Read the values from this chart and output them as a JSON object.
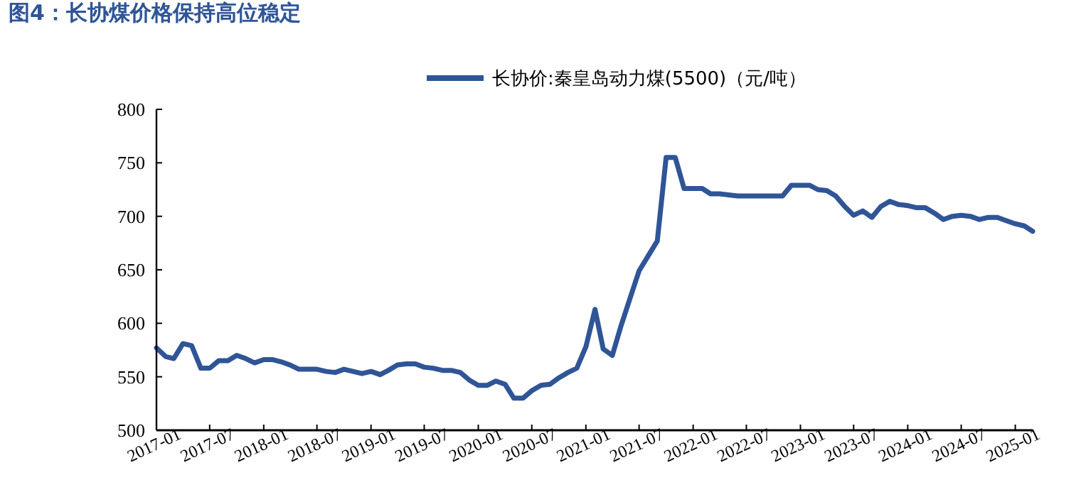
{
  "chart_data": {
    "type": "line",
    "title": "图4：长协煤价格保持高位稳定",
    "x": [
      "2017-01",
      "2017-02",
      "2017-03",
      "2017-04",
      "2017-05",
      "2017-06",
      "2017-07",
      "2017-08",
      "2017-09",
      "2017-10",
      "2017-11",
      "2017-12",
      "2018-01",
      "2018-02",
      "2018-03",
      "2018-04",
      "2018-05",
      "2018-06",
      "2018-07",
      "2018-08",
      "2018-09",
      "2018-10",
      "2018-11",
      "2018-12",
      "2019-01",
      "2019-02",
      "2019-03",
      "2019-04",
      "2019-05",
      "2019-06",
      "2019-07",
      "2019-08",
      "2019-09",
      "2019-10",
      "2019-11",
      "2019-12",
      "2020-01",
      "2020-02",
      "2020-03",
      "2020-04",
      "2020-05",
      "2020-06",
      "2020-07",
      "2020-08",
      "2020-09",
      "2020-10",
      "2020-11",
      "2020-12",
      "2021-01",
      "2021-02",
      "2021-03",
      "2021-04",
      "2021-05",
      "2021-06",
      "2021-07",
      "2021-08",
      "2021-09",
      "2021-10",
      "2021-11",
      "2021-12",
      "2022-01",
      "2022-02",
      "2022-03",
      "2022-04",
      "2022-05",
      "2022-06",
      "2022-07",
      "2022-08",
      "2022-09",
      "2022-10",
      "2022-11",
      "2022-12",
      "2023-01",
      "2023-02",
      "2023-03",
      "2023-04",
      "2023-05",
      "2023-06",
      "2023-07",
      "2023-08",
      "2023-09",
      "2023-10",
      "2023-11",
      "2023-12",
      "2024-01",
      "2024-02",
      "2024-03",
      "2024-04",
      "2024-05",
      "2024-06",
      "2024-07",
      "2024-08",
      "2024-09",
      "2024-10",
      "2024-11",
      "2024-12",
      "2025-01",
      "2025-02",
      "2025-03"
    ],
    "series": [
      {
        "name": "长协价:秦皇岛动力煤(5500)（元/吨）",
        "color": "#2f5597",
        "values": [
          577,
          569,
          567,
          581,
          579,
          558,
          558,
          565,
          565,
          570,
          567,
          563,
          566,
          566,
          564,
          561,
          557,
          557,
          557,
          555,
          554,
          557,
          555,
          553,
          555,
          552,
          556,
          561,
          562,
          562,
          559,
          558,
          556,
          556,
          554,
          547,
          542,
          542,
          546,
          543,
          530,
          530,
          537,
          542,
          543,
          549,
          554,
          558,
          578,
          613,
          576,
          570,
          598,
          624,
          649,
          663,
          677,
          755,
          755,
          726,
          726,
          726,
          721,
          721,
          720,
          719,
          719,
          719,
          719,
          719,
          719,
          729,
          729,
          729,
          725,
          724,
          719,
          709,
          701,
          705,
          699,
          709,
          714,
          711,
          710,
          708,
          708,
          703,
          697,
          700,
          701,
          700,
          697,
          699,
          699,
          696,
          693,
          691,
          686
        ]
      }
    ],
    "xlim": [
      "2017-01",
      "2025-03"
    ],
    "xticks": [
      "2017-01",
      "2017-07",
      "2018-01",
      "2018-07",
      "2019-01",
      "2019-07",
      "2020-01",
      "2020-07",
      "2021-01",
      "2021-07",
      "2022-01",
      "2022-07",
      "2023-01",
      "2023-07",
      "2024-01",
      "2024-07",
      "2025-01"
    ],
    "ylim": [
      500,
      800
    ],
    "yticks": [
      500,
      550,
      600,
      650,
      700,
      750,
      800
    ],
    "grid": false,
    "legend": "top",
    "marker": "none",
    "line_style": "solid"
  }
}
